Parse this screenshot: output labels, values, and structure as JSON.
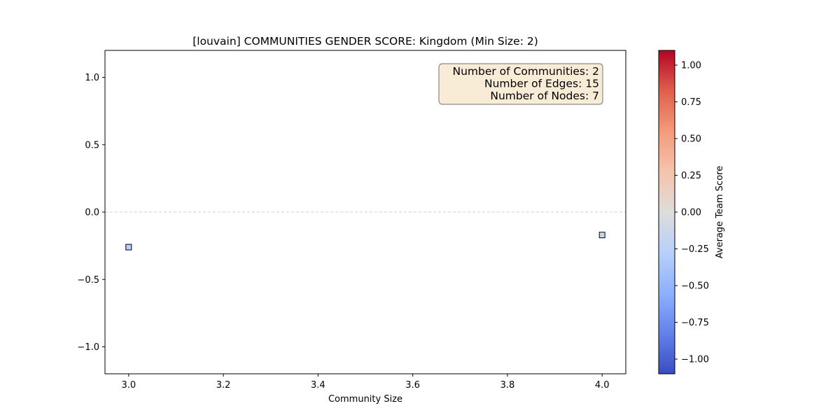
{
  "chart_data": {
    "type": "scatter",
    "title": "[louvain] COMMUNITIES GENDER SCORE: Kingdom (Min Size: 2)",
    "xlabel": "Community Size",
    "ylabel": "",
    "xlim": [
      2.95,
      4.05
    ],
    "ylim": [
      -1.2,
      1.2
    ],
    "xticks": [
      3.0,
      3.2,
      3.4,
      3.6,
      3.8,
      4.0
    ],
    "yticks": [
      -1.0,
      -0.5,
      0.0,
      0.5,
      1.0
    ],
    "reference_line": {
      "y": 0.0,
      "style": "dashed",
      "color": "#cccccc"
    },
    "points": [
      {
        "x": 3.0,
        "y": -0.26,
        "color_value": -0.26
      },
      {
        "x": 4.0,
        "y": -0.17,
        "color_value": -0.17
      }
    ],
    "marker": "square",
    "grid": false,
    "info_box": {
      "lines": [
        "Number of Communities: 2",
        "Number of Edges: 15",
        "Number of Nodes: 7"
      ],
      "position": "top-right",
      "facecolor": "#f8ecd6"
    },
    "colorbar": {
      "label": "Average Team Score",
      "colormap": "coolwarm",
      "range": [
        -1.1,
        1.1
      ],
      "ticks": [
        -1.0,
        -0.75,
        -0.5,
        -0.25,
        0.0,
        0.25,
        0.5,
        0.75,
        1.0
      ]
    }
  }
}
